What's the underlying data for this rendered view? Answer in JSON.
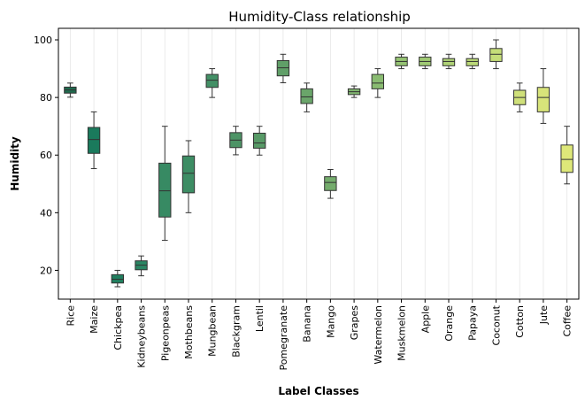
{
  "chart_data": {
    "type": "box",
    "title": "Humidity-Class relationship",
    "xlabel": "Label Classes",
    "ylabel": "Humidity",
    "ylim": [
      10,
      104
    ],
    "yticks": [
      20,
      40,
      60,
      80,
      100
    ],
    "grid": "x-only, light",
    "categories": [
      "Rice",
      "Maize",
      "Chickpea",
      "Kidneybeans",
      "Pigeonpeas",
      "Mothbeans",
      "Mungbean",
      "Blackgram",
      "Lentil",
      "Pomegranate",
      "Banana",
      "Mango",
      "Grapes",
      "Watermelon",
      "Muskmelon",
      "Apple",
      "Orange",
      "Papaya",
      "Coconut",
      "Cotton",
      "Jute",
      "Coffee"
    ],
    "boxes": [
      {
        "min": 80.1,
        "q1": 81.5,
        "median": 82.6,
        "q3": 83.6,
        "max": 85.0,
        "color": "#1f6b4e"
      },
      {
        "min": 55.3,
        "q1": 60.6,
        "median": 65.4,
        "q3": 69.6,
        "max": 75.0,
        "color": "#1a7a5c"
      },
      {
        "min": 14.3,
        "q1": 15.6,
        "median": 16.9,
        "q3": 18.5,
        "max": 20.0,
        "color": "#217f5f"
      },
      {
        "min": 18.1,
        "q1": 20.2,
        "median": 21.8,
        "q3": 23.3,
        "max": 25.0,
        "color": "#2a8563"
      },
      {
        "min": 30.4,
        "q1": 38.5,
        "median": 47.6,
        "q3": 57.2,
        "max": 70.0,
        "color": "#378a63"
      },
      {
        "min": 40.0,
        "q1": 46.9,
        "median": 53.7,
        "q3": 59.7,
        "max": 65.0,
        "color": "#3d8d64"
      },
      {
        "min": 80.0,
        "q1": 83.5,
        "median": 86.0,
        "q3": 88.0,
        "max": 90.0,
        "color": "#439066"
      },
      {
        "min": 60.1,
        "q1": 62.6,
        "median": 65.2,
        "q3": 67.8,
        "max": 70.0,
        "color": "#4d9466"
      },
      {
        "min": 60.0,
        "q1": 62.4,
        "median": 64.2,
        "q3": 67.6,
        "max": 70.0,
        "color": "#589a67"
      },
      {
        "min": 85.1,
        "q1": 87.5,
        "median": 90.3,
        "q3": 92.8,
        "max": 95.0,
        "color": "#609f68"
      },
      {
        "min": 75.0,
        "q1": 77.9,
        "median": 80.2,
        "q3": 83.0,
        "max": 85.0,
        "color": "#6aa56a"
      },
      {
        "min": 45.0,
        "q1": 47.7,
        "median": 50.5,
        "q3": 52.5,
        "max": 55.0,
        "color": "#74ac6c"
      },
      {
        "min": 80.0,
        "q1": 81.0,
        "median": 82.0,
        "q3": 83.0,
        "max": 84.0,
        "color": "#7fb46f"
      },
      {
        "min": 80.0,
        "q1": 83.0,
        "median": 85.0,
        "q3": 88.0,
        "max": 90.0,
        "color": "#89bb71"
      },
      {
        "min": 90.0,
        "q1": 91.0,
        "median": 92.5,
        "q3": 94.0,
        "max": 95.0,
        "color": "#95c373"
      },
      {
        "min": 90.0,
        "q1": 91.0,
        "median": 92.5,
        "q3": 94.0,
        "max": 95.0,
        "color": "#a0ca74"
      },
      {
        "min": 90.0,
        "q1": 91.0,
        "median": 92.5,
        "q3": 93.5,
        "max": 95.0,
        "color": "#aed176"
      },
      {
        "min": 90.0,
        "q1": 91.0,
        "median": 92.5,
        "q3": 93.5,
        "max": 95.0,
        "color": "#bad878"
      },
      {
        "min": 90.0,
        "q1": 92.5,
        "median": 95.0,
        "q3": 97.0,
        "max": 100.0,
        "color": "#c5dd79"
      },
      {
        "min": 75.0,
        "q1": 77.5,
        "median": 80.0,
        "q3": 82.5,
        "max": 85.0,
        "color": "#cfe07a"
      },
      {
        "min": 71.0,
        "q1": 75.0,
        "median": 80.0,
        "q3": 83.5,
        "max": 90.0,
        "color": "#d8e47a"
      },
      {
        "min": 50.0,
        "q1": 54.0,
        "median": 58.5,
        "q3": 63.5,
        "max": 70.0,
        "color": "#dee879"
      }
    ]
  }
}
